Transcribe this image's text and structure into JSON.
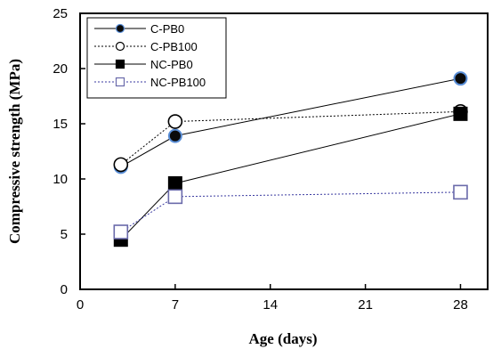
{
  "chart_data": {
    "type": "line",
    "xlabel": "Age (days)",
    "ylabel": "Compressive strength (MPa)",
    "xlim": [
      0,
      30
    ],
    "ylim": [
      0,
      25
    ],
    "xticks": [
      "0",
      "7",
      "14",
      "21",
      "28"
    ],
    "yticks": [
      "0",
      "5",
      "10",
      "15",
      "20",
      "25"
    ],
    "grid": false,
    "legend_position": "top-left",
    "x": [
      3,
      7,
      28
    ],
    "series": [
      {
        "name": "C-PB0",
        "values": [
          11.1,
          13.9,
          19.1
        ],
        "marker": "filled-circle",
        "line": "solid",
        "color": "#000000",
        "fill": "#0a0a0a",
        "edge": "#5a8fd8"
      },
      {
        "name": "C-PB100",
        "values": [
          11.3,
          15.2,
          16.1
        ],
        "marker": "open-circle",
        "line": "dotted",
        "color": "#000000",
        "fill": "#ffffff",
        "edge": "#000000"
      },
      {
        "name": "NC-PB0",
        "values": [
          4.5,
          9.6,
          15.9
        ],
        "marker": "filled-square",
        "line": "solid",
        "color": "#000000",
        "fill": "#000000",
        "edge": "#000000"
      },
      {
        "name": "NC-PB100",
        "values": [
          5.2,
          8.4,
          8.8
        ],
        "marker": "open-square",
        "line": "dotted",
        "color": "#3a3aa0",
        "fill": "#ffffff",
        "edge": "#6a6aaa"
      }
    ]
  }
}
